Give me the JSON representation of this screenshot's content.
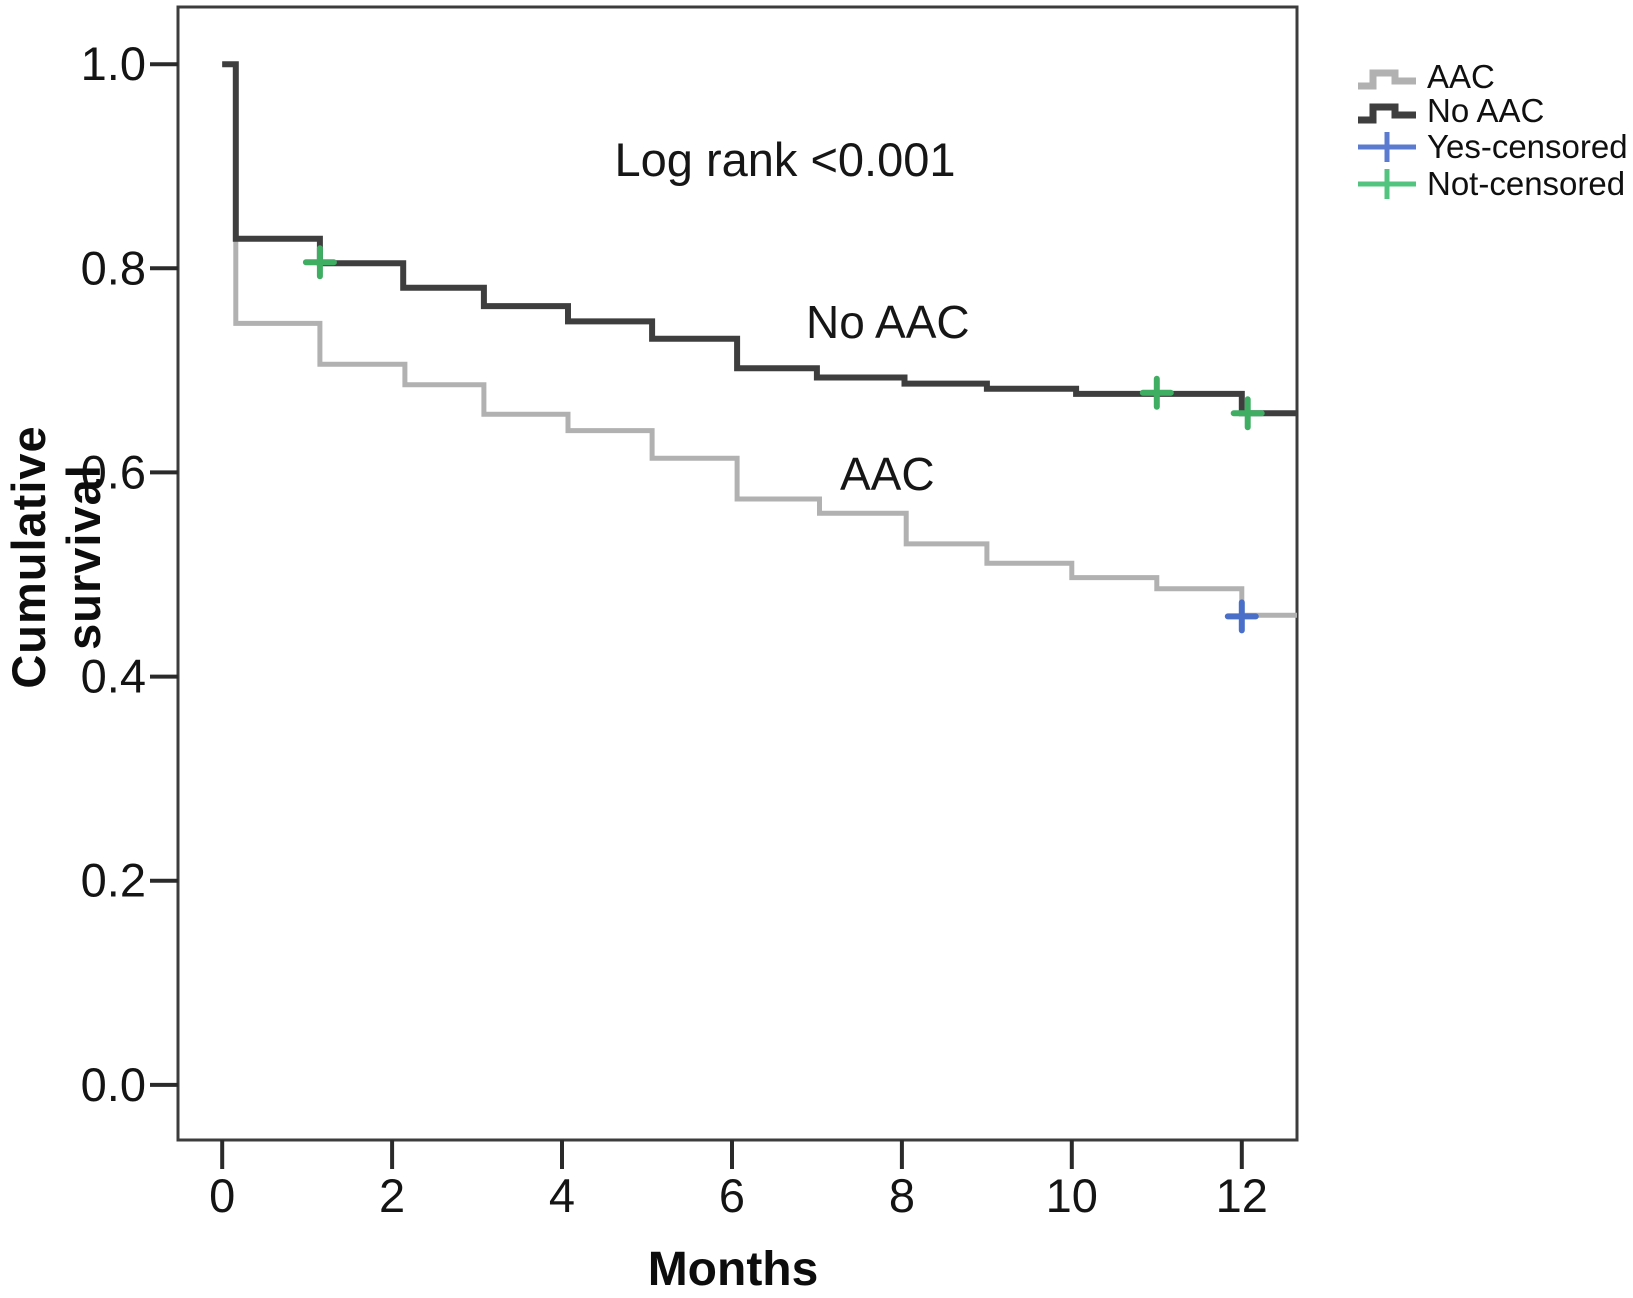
{
  "figure": {
    "background": "#ffffff"
  },
  "chart_data": {
    "type": "line",
    "subtype": "kaplan-meier-step-survival",
    "title": "",
    "xlabel": "Months",
    "ylabel": "Cumulative survival",
    "annotation": "Log rank <0.001",
    "grid": false,
    "legend_position": "top-right-outside",
    "xlim": [
      -0.52,
      12.65
    ],
    "ylim": [
      -0.054,
      1.056
    ],
    "x_ticks": [
      0,
      2,
      4,
      6,
      8,
      10,
      12
    ],
    "x_tick_labels": [
      "0",
      "2",
      "4",
      "6",
      "8",
      "10",
      "12"
    ],
    "y_ticks": [
      0.0,
      0.2,
      0.4,
      0.6,
      0.8,
      1.0
    ],
    "y_tick_labels": [
      "0.0",
      "0.2",
      "0.4",
      "0.6",
      "0.8",
      "1.0"
    ],
    "curve_labels": {
      "no_aac": "No AAC",
      "aac": "AAC"
    },
    "series": [
      {
        "name": "AAC",
        "color": "#b1b1b1",
        "stroke_width": 5,
        "start": [
          0,
          1.0
        ],
        "steps": [
          [
            0.16,
            0.746
          ],
          [
            1.15,
            0.706
          ],
          [
            2.15,
            0.686
          ],
          [
            3.08,
            0.657
          ],
          [
            4.07,
            0.641
          ],
          [
            5.06,
            0.614
          ],
          [
            6.06,
            0.574
          ],
          [
            7.03,
            0.56
          ],
          [
            8.05,
            0.53
          ],
          [
            9.0,
            0.511
          ],
          [
            10.0,
            0.497
          ],
          [
            11.0,
            0.486
          ],
          [
            12.0,
            0.46
          ]
        ],
        "end_month": 12.65
      },
      {
        "name": "No AAC",
        "color": "#3e3e3e",
        "stroke_width": 6,
        "start": [
          0,
          1.0
        ],
        "steps": [
          [
            0.16,
            0.829
          ],
          [
            1.15,
            0.805
          ],
          [
            2.13,
            0.781
          ],
          [
            3.08,
            0.763
          ],
          [
            4.07,
            0.748
          ],
          [
            5.06,
            0.731
          ],
          [
            6.06,
            0.702
          ],
          [
            7.0,
            0.693
          ],
          [
            8.03,
            0.687
          ],
          [
            9.0,
            0.682
          ],
          [
            10.05,
            0.677
          ],
          [
            12.0,
            0.658
          ]
        ],
        "end_month": 12.65
      }
    ],
    "censored_points": [
      {
        "group": "No AAC",
        "status": "Not-censored",
        "month": 1.15,
        "survival": 0.806
      },
      {
        "group": "No AAC",
        "status": "Not-censored",
        "month": 11.0,
        "survival": 0.678
      },
      {
        "group": "No AAC",
        "status": "Not-censored",
        "month": 12.07,
        "survival": 0.658
      },
      {
        "group": "AAC",
        "status": "Yes-censored",
        "month": 12.0,
        "survival": 0.459
      }
    ],
    "colors": {
      "aac": "#b1b1b1",
      "no_aac": "#3e3e3e",
      "yes_censored": "#4a6fc9",
      "not_censored": "#3fae63",
      "axis_box": "#3c3c3c",
      "tick": "#2a2a2a",
      "text": "#141414"
    },
    "legend": {
      "items": [
        {
          "label": "AAC",
          "symbol": "step-line",
          "color": "#b1b1b1"
        },
        {
          "label": "No AAC",
          "symbol": "step-line",
          "color": "#3e3e3e"
        },
        {
          "label": "Yes-censored",
          "symbol": "plus",
          "color": "#5b7bd0"
        },
        {
          "label": "Not-censored",
          "symbol": "plus",
          "color": "#53c47f"
        }
      ]
    }
  }
}
